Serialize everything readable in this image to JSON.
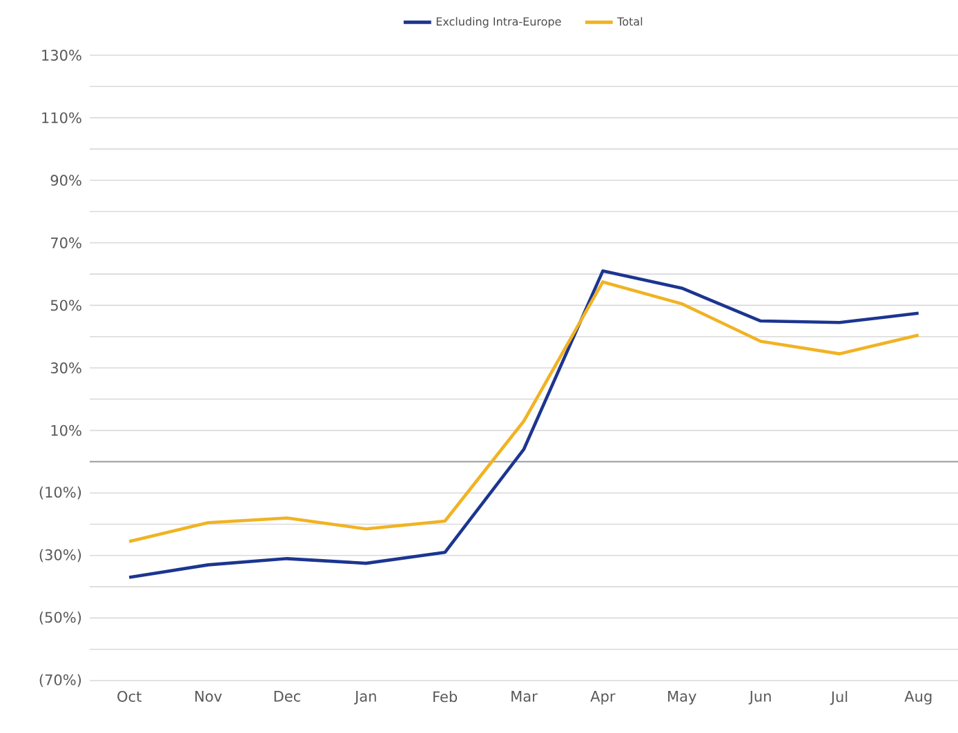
{
  "chart_data": {
    "type": "line",
    "categories": [
      "Oct",
      "Nov",
      "Dec",
      "Jan",
      "Feb",
      "Mar",
      "Apr",
      "May",
      "Jun",
      "Jul",
      "Aug"
    ],
    "series": [
      {
        "name": "Excluding Intra-Europe",
        "color": "#1c3590",
        "values": [
          -37,
          -33,
          -31,
          -32.5,
          -29,
          4,
          61,
          55.5,
          45,
          44.5,
          47.5
        ]
      },
      {
        "name": "Total",
        "color": "#f0b323",
        "values": [
          -25.5,
          -19.5,
          -18,
          -21.5,
          -19,
          13,
          57.5,
          50.5,
          38.5,
          34.5,
          40.5
        ]
      }
    ],
    "ylim": [
      -70,
      130
    ],
    "yticks": [
      {
        "value": -70,
        "label": "(70%)"
      },
      {
        "value": -60,
        "label": null
      },
      {
        "value": -50,
        "label": "(50%)"
      },
      {
        "value": -40,
        "label": null
      },
      {
        "value": -30,
        "label": "(30%)"
      },
      {
        "value": -20,
        "label": null
      },
      {
        "value": -10,
        "label": "(10%)"
      },
      {
        "value": 0,
        "label": null
      },
      {
        "value": 10,
        "label": "10%"
      },
      {
        "value": 20,
        "label": null
      },
      {
        "value": 30,
        "label": "30%"
      },
      {
        "value": 40,
        "label": null
      },
      {
        "value": 50,
        "label": "50%"
      },
      {
        "value": 60,
        "label": null
      },
      {
        "value": 70,
        "label": "70%"
      },
      {
        "value": 80,
        "label": null
      },
      {
        "value": 90,
        "label": "90%"
      },
      {
        "value": 100,
        "label": null
      },
      {
        "value": 110,
        "label": "110%"
      },
      {
        "value": 120,
        "label": null
      },
      {
        "value": 130,
        "label": "130%"
      }
    ],
    "ref_lines": [
      {
        "axis": "y",
        "value": 0,
        "color": "#a6a6a6"
      }
    ],
    "grid": "y",
    "legend": "top",
    "marker": "none",
    "line_style": "solid"
  }
}
